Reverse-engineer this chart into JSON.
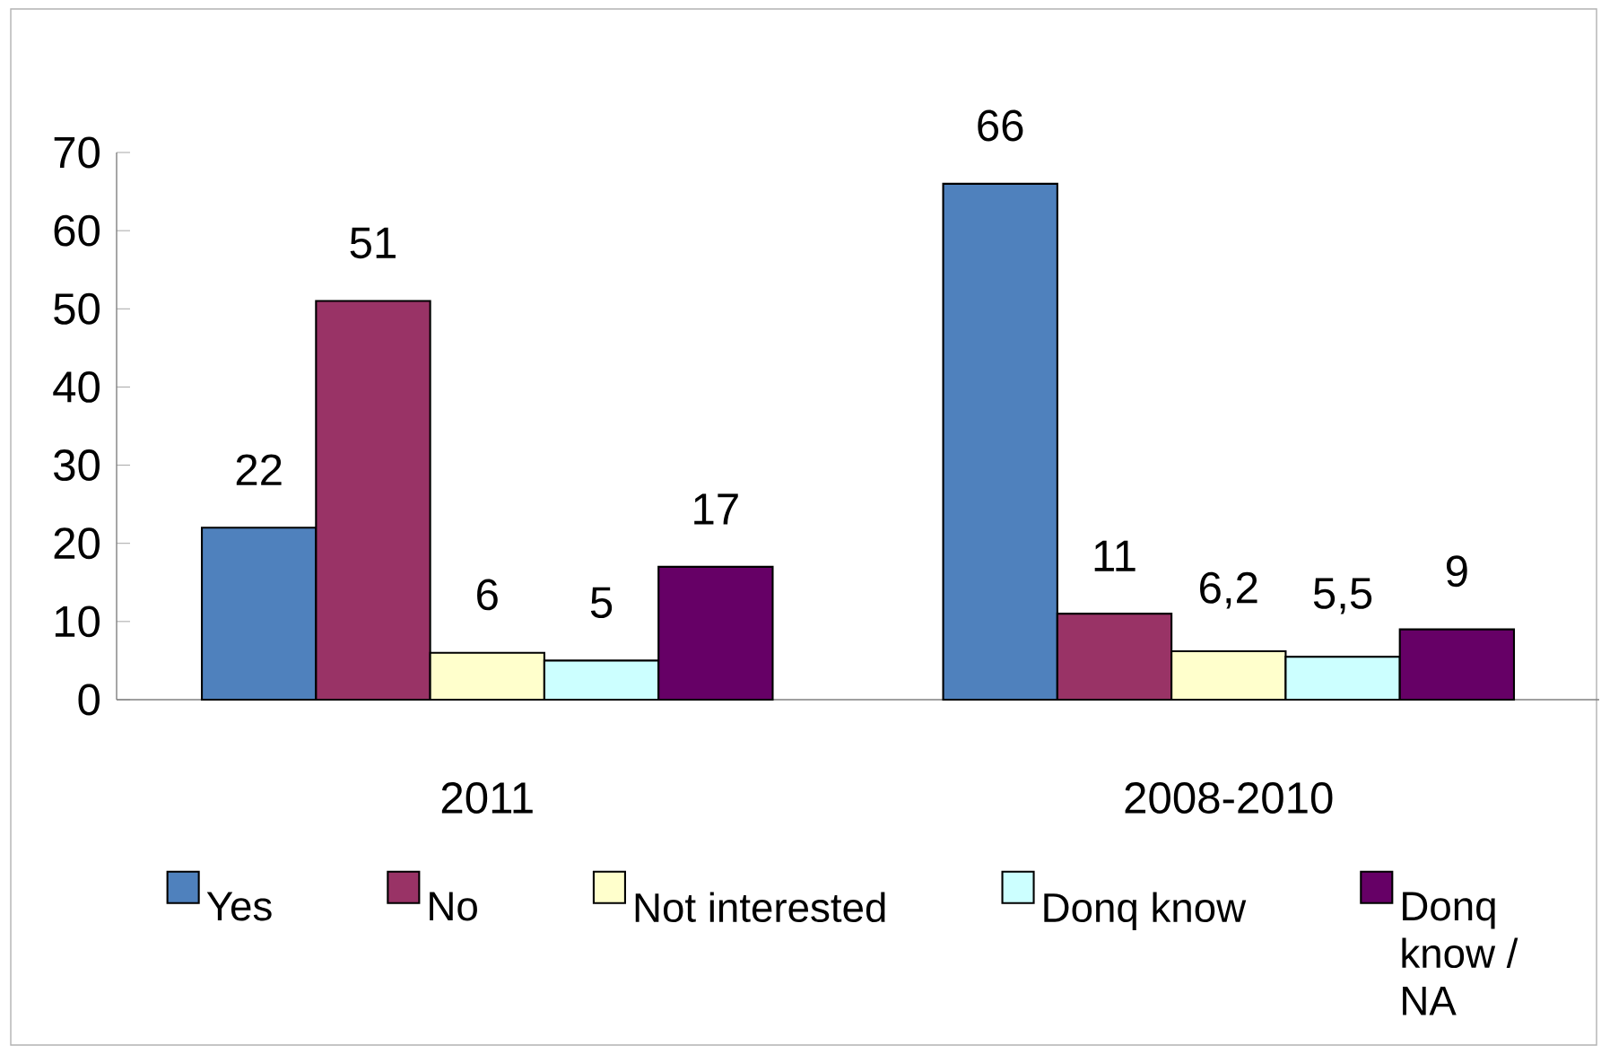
{
  "chart_data": {
    "type": "bar",
    "categories": [
      "2011",
      "2008-2010"
    ],
    "ylim": [
      0,
      70
    ],
    "yticks": [
      0,
      10,
      20,
      30,
      40,
      50,
      60,
      70
    ],
    "legend": "bottom",
    "series": [
      {
        "name": "Yes",
        "color": "#4f81bd",
        "values": [
          22,
          66
        ],
        "value_labels": [
          "22",
          "66"
        ]
      },
      {
        "name": "No",
        "color": "#993366",
        "values": [
          51,
          11
        ],
        "value_labels": [
          "51",
          "11"
        ]
      },
      {
        "name": "Not interested",
        "color": "#ffffcc",
        "values": [
          6,
          6.2
        ],
        "value_labels": [
          "6",
          "6,2"
        ]
      },
      {
        "name": "Donq know",
        "color": "#ccffff",
        "values": [
          5,
          5.5
        ],
        "value_labels": [
          "5",
          "5,5"
        ]
      },
      {
        "name": "Donq know / NA",
        "color": "#660066",
        "values": [
          17,
          9
        ],
        "value_labels": [
          "17",
          "9"
        ]
      }
    ]
  }
}
